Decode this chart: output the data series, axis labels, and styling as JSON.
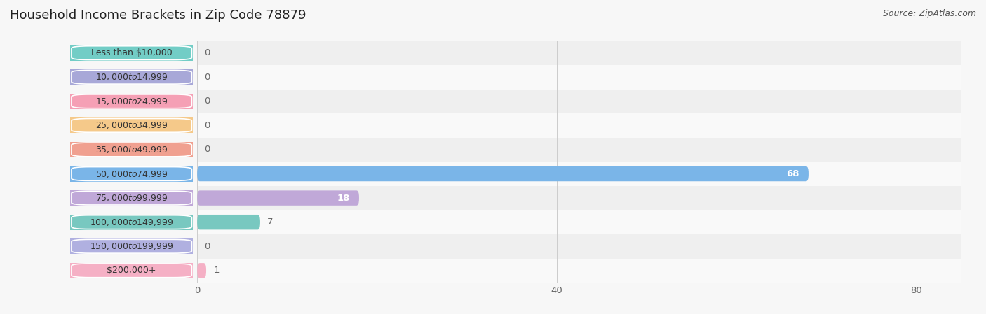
{
  "title": "Household Income Brackets in Zip Code 78879",
  "source": "Source: ZipAtlas.com",
  "categories": [
    "Less than $10,000",
    "$10,000 to $14,999",
    "$15,000 to $24,999",
    "$25,000 to $34,999",
    "$35,000 to $49,999",
    "$50,000 to $74,999",
    "$75,000 to $99,999",
    "$100,000 to $149,999",
    "$150,000 to $199,999",
    "$200,000+"
  ],
  "values": [
    0,
    0,
    0,
    0,
    0,
    68,
    18,
    7,
    0,
    1
  ],
  "bar_colors": [
    "#72cdc6",
    "#a8a8d8",
    "#f5a0b5",
    "#f5c98a",
    "#f0a090",
    "#7ab5e8",
    "#c0a8d8",
    "#78c8c0",
    "#b0b0e0",
    "#f5b0c5"
  ],
  "bg_color": "#f7f7f7",
  "row_bg_even": "#efefef",
  "row_bg_odd": "#f9f9f9",
  "xlim_max": 85,
  "xticks": [
    0,
    40,
    80
  ],
  "title_fontsize": 13,
  "source_fontsize": 9,
  "value_fontsize": 9.5,
  "label_fontsize": 9
}
